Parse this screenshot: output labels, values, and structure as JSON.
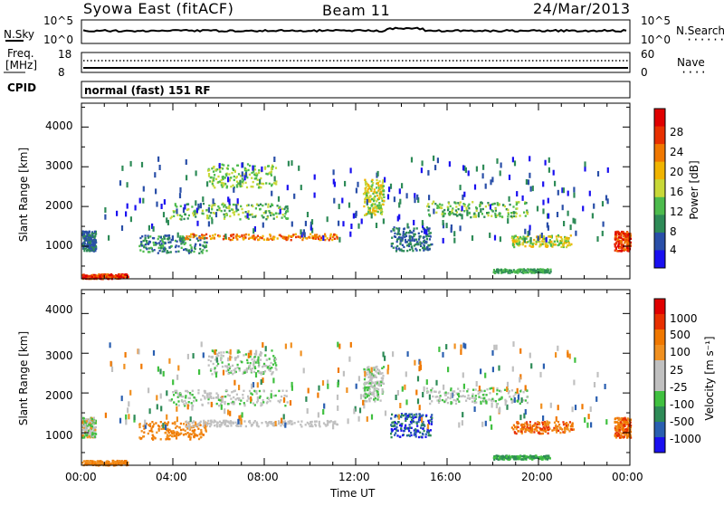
{
  "header": {
    "station": "Syowa East (fitACF)",
    "beam": "Beam 11",
    "date": "24/Mar/2013"
  },
  "status_panels": {
    "nsky_label": "N.Sky",
    "nsearch_label": "N.Search",
    "freq_label": "Freq.",
    "freq_unit": "[MHz]",
    "nave_label": "Nave",
    "cpid_label": "CPID",
    "cpid_value": "normal (fast) 151 RF",
    "noise_ticks_left": [
      "10^5",
      "10^0"
    ],
    "noise_ticks_right": [
      "10^5",
      "10^0"
    ],
    "freq_ticks": [
      "18",
      "8"
    ],
    "nave_ticks": [
      "60",
      "0"
    ]
  },
  "colors": {
    "power": [
      "#1a10f0",
      "#2a4fa8",
      "#2e8b57",
      "#4dbb4d",
      "#c8d838",
      "#f0b400",
      "#f07800",
      "#e83000",
      "#e00000"
    ],
    "velocity": [
      "#e00000",
      "#e83000",
      "#f07800",
      "#f09020",
      "#c0c0c0",
      "#c0c0c0",
      "#40c040",
      "#2e8b57",
      "#2a5fb0",
      "#1a10f0"
    ],
    "axis": "#000000"
  },
  "chart_data": [
    {
      "type": "heatmap",
      "name": "power",
      "ylabel": "Slant Range [km]",
      "xlabel": "",
      "x_ticks": [
        "00:00",
        "04:00",
        "08:00",
        "12:00",
        "16:00",
        "20:00",
        "00:00"
      ],
      "xlim_hours": [
        0,
        24
      ],
      "y_ticks": [
        "1000",
        "2000",
        "3000",
        "4000"
      ],
      "ylim_km": [
        180,
        4600
      ],
      "colorbar_label": "Power [dB]",
      "colorbar_ticks": [
        "4",
        "8",
        "12",
        "16",
        "20",
        "24",
        "28"
      ],
      "clim": [
        0,
        30
      ]
    },
    {
      "type": "heatmap",
      "name": "velocity",
      "ylabel": "Slant Range [km]",
      "xlabel": "Time UT",
      "x_ticks": [
        "00:00",
        "04:00",
        "08:00",
        "12:00",
        "16:00",
        "20:00",
        "00:00"
      ],
      "xlim_hours": [
        0,
        24
      ],
      "y_ticks": [
        "1000",
        "2000",
        "3000",
        "4000"
      ],
      "ylim_km": [
        180,
        4600
      ],
      "colorbar_label": "Velocity [m s⁻¹]",
      "colorbar_ticks": [
        "1000",
        "500",
        "100",
        "25",
        "-25",
        "-100",
        "-500",
        "-1000"
      ],
      "clim": [
        -1000,
        1000
      ]
    }
  ]
}
